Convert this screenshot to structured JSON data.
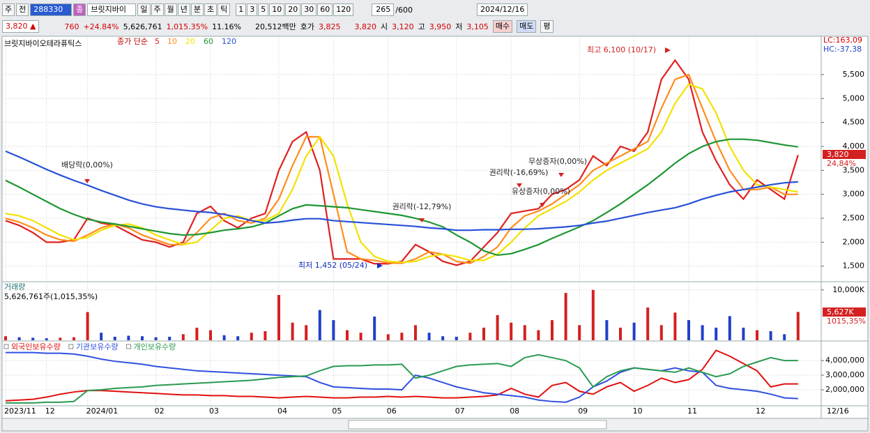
{
  "toolbar": {
    "period": "주",
    "prev": "전",
    "code": "288330",
    "badge": "종",
    "name": "브릿지바이",
    "intervals": [
      "일",
      "주",
      "월",
      "년",
      "분",
      "초",
      "틱"
    ],
    "minutes": [
      "1",
      "3",
      "5",
      "10",
      "20",
      "30",
      "60",
      "120"
    ],
    "count": "265",
    "count_max": "/600",
    "date": "2024/12/16"
  },
  "quote": {
    "price": "3,820",
    "arrow": "▲",
    "change": "760",
    "change_rate": "+24.84%",
    "volume": "5,626,761",
    "volume_rate": "1,015.35%",
    "turnover": "11.16%",
    "amount": "20,512백만",
    "bid_label": "호가",
    "ask": "3,825",
    "bid": "3,820",
    "open_label": "시",
    "open": "3,120",
    "high_label": "고",
    "high": "3,950",
    "low_label": "저",
    "low": "3,105",
    "buy": "매수",
    "sell": "매도",
    "avg": "평"
  },
  "chart_data": [
    {
      "type": "line",
      "title": "브릿지바이오테라퓨틱스",
      "subtitle": "종가 단순",
      "categories": [
        "2023/11",
        null,
        null,
        "12",
        null,
        null,
        "2024/01",
        null,
        null,
        null,
        null,
        "02",
        null,
        null,
        null,
        "03",
        null,
        null,
        null,
        null,
        "04",
        null,
        null,
        null,
        "05",
        null,
        null,
        null,
        "06",
        null,
        null,
        null,
        null,
        "07",
        null,
        null,
        null,
        "08",
        null,
        null,
        null,
        null,
        "09",
        null,
        null,
        null,
        "10",
        null,
        null,
        null,
        "11",
        null,
        null,
        null,
        null,
        "12",
        null,
        null,
        null
      ],
      "cursor_date": "12/16",
      "series": [
        {
          "name": "5",
          "color": "#e02020",
          "values": [
            2450,
            2350,
            2200,
            2000,
            2000,
            2050,
            2500,
            2400,
            2350,
            2200,
            2050,
            2000,
            1900,
            2000,
            2600,
            2750,
            2450,
            2300,
            2500,
            2600,
            3500,
            4100,
            4300,
            3500,
            1650,
            1650,
            1650,
            1550,
            1550,
            1600,
            1950,
            1800,
            1600,
            1520,
            1600,
            1900,
            2200,
            2600,
            2650,
            2700,
            3000,
            3100,
            3300,
            3800,
            3600,
            4000,
            3900,
            4300,
            5400,
            5800,
            5400,
            4300,
            3700,
            3200,
            2900,
            3300,
            3100,
            2900,
            3820
          ]
        },
        {
          "name": "10",
          "color": "#ff8c1a",
          "values": [
            2500,
            2420,
            2300,
            2150,
            2050,
            2020,
            2150,
            2300,
            2380,
            2300,
            2150,
            2050,
            1950,
            1950,
            2200,
            2500,
            2600,
            2450,
            2400,
            2500,
            2900,
            3600,
            4200,
            4200,
            3000,
            1800,
            1650,
            1620,
            1570,
            1560,
            1650,
            1800,
            1750,
            1600,
            1560,
            1700,
            1900,
            2300,
            2550,
            2650,
            2800,
            3000,
            3200,
            3500,
            3650,
            3800,
            3950,
            4100,
            4800,
            5400,
            5500,
            4800,
            4100,
            3500,
            3100,
            3100,
            3150,
            3000,
            3000
          ]
        },
        {
          "name": "20",
          "color": "#f2e200",
          "values": [
            2600,
            2550,
            2450,
            2300,
            2150,
            2050,
            2100,
            2250,
            2350,
            2380,
            2300,
            2150,
            2050,
            1950,
            2000,
            2250,
            2500,
            2550,
            2450,
            2450,
            2600,
            3100,
            3800,
            4200,
            3800,
            2800,
            2000,
            1700,
            1600,
            1580,
            1600,
            1700,
            1750,
            1700,
            1620,
            1620,
            1750,
            2000,
            2300,
            2550,
            2700,
            2850,
            3050,
            3300,
            3500,
            3650,
            3800,
            3950,
            4300,
            4900,
            5300,
            5200,
            4700,
            4000,
            3500,
            3200,
            3150,
            3100,
            3050
          ]
        },
        {
          "name": "60",
          "color": "#1e9632",
          "values": [
            3290,
            3150,
            3000,
            2850,
            2700,
            2580,
            2480,
            2420,
            2380,
            2330,
            2280,
            2230,
            2180,
            2150,
            2160,
            2200,
            2250,
            2280,
            2320,
            2400,
            2550,
            2700,
            2780,
            2760,
            2740,
            2720,
            2680,
            2640,
            2600,
            2560,
            2500,
            2420,
            2320,
            2150,
            2000,
            1820,
            1730,
            1760,
            1850,
            1950,
            2080,
            2200,
            2320,
            2450,
            2620,
            2800,
            3000,
            3200,
            3420,
            3650,
            3850,
            4000,
            4100,
            4150,
            4150,
            4130,
            4080,
            4030,
            3990
          ]
        },
        {
          "name": "120",
          "color": "#2850d8",
          "values": [
            3900,
            3780,
            3650,
            3520,
            3400,
            3290,
            3190,
            3080,
            2980,
            2880,
            2800,
            2740,
            2700,
            2670,
            2640,
            2620,
            2580,
            2520,
            2450,
            2400,
            2420,
            2460,
            2490,
            2490,
            2450,
            2430,
            2410,
            2390,
            2370,
            2350,
            2330,
            2300,
            2280,
            2250,
            2250,
            2260,
            2260,
            2270,
            2270,
            2280,
            2300,
            2320,
            2350,
            2400,
            2440,
            2500,
            2560,
            2620,
            2670,
            2720,
            2800,
            2900,
            2980,
            3050,
            3100,
            3150,
            3200,
            3240,
            3260
          ]
        }
      ],
      "ylim": [
        1190,
        6300
      ],
      "yticks": [
        {
          "value": 1500,
          "label": "1,500"
        },
        {
          "value": 2000,
          "label": "2,000"
        },
        {
          "value": 2500,
          "label": "2,500"
        },
        {
          "value": 3000,
          "label": "3,000"
        },
        {
          "value": 3500,
          "label": "3,500"
        },
        {
          "value": 4000,
          "label": "4,000"
        },
        {
          "value": 4500,
          "label": "4,500"
        },
        {
          "value": 5000,
          "label": "5,000"
        },
        {
          "value": 5500,
          "label": "5,500"
        }
      ],
      "grid": true,
      "annotations": [
        "배당락(0,00%)",
        "권리락(-12,79%)",
        "권리락(-16,69%)",
        "무상증자(0,00%)",
        "유상증자(0,00%)",
        "최고 6,100 (10/17)",
        "최저 1,452 (05/24)"
      ],
      "lc_label": "LC:163,09",
      "hc_label": "HC:-37,38",
      "last_label": "3,820",
      "rate_label": "24,84%"
    },
    {
      "type": "bar",
      "title": "거래량",
      "subtitle": "5,626,761주(1,015,35%)",
      "color_up": "#d42020",
      "color_down": "#2040c8",
      "values": [
        800,
        600,
        500,
        400,
        500,
        600,
        5600,
        1500,
        700,
        900,
        800,
        600,
        700,
        1200,
        2500,
        2000,
        1000,
        800,
        1500,
        1800,
        9000,
        3500,
        3000,
        6000,
        4000,
        2000,
        1500,
        4700,
        1200,
        1500,
        3000,
        1500,
        800,
        700,
        1500,
        2500,
        5000,
        3500,
        3000,
        2000,
        4000,
        9400,
        3000,
        10000,
        4000,
        2500,
        3500,
        6500,
        3000,
        5500,
        4000,
        3000,
        2500,
        4800,
        2500,
        2000,
        1800,
        1200,
        5627
      ],
      "ylim": [
        0,
        10800
      ],
      "yticks": [
        {
          "value": 10000,
          "label": "10,000K"
        }
      ],
      "last_label": "5,627K",
      "rate_label": "1015,35%"
    },
    {
      "type": "line",
      "series": [
        {
          "name": "외국인보유수량",
          "color": "#e01010",
          "values": [
            1250000,
            1300000,
            1350000,
            1500000,
            1700000,
            1850000,
            1950000,
            1950000,
            1900000,
            1850000,
            1800000,
            1750000,
            1700000,
            1650000,
            1650000,
            1600000,
            1600000,
            1550000,
            1550000,
            1500000,
            1450000,
            1500000,
            1550000,
            1500000,
            1450000,
            1450000,
            1500000,
            1500000,
            1550000,
            1500000,
            1550000,
            1500000,
            1450000,
            1450000,
            1500000,
            1550000,
            1650000,
            2100000,
            1700000,
            1500000,
            2300000,
            2500000,
            1900000,
            1700000,
            2200000,
            2500000,
            1900000,
            2300000,
            2800000,
            2500000,
            2700000,
            3400000,
            4700000,
            4300000,
            3800000,
            3300000,
            2200000,
            2400000,
            2400000
          ]
        },
        {
          "name": "기관보유수량",
          "color": "#3050e0",
          "values": [
            4550000,
            4550000,
            4550000,
            4500000,
            4500000,
            4450000,
            4300000,
            4100000,
            3950000,
            3850000,
            3750000,
            3600000,
            3500000,
            3400000,
            3300000,
            3250000,
            3200000,
            3150000,
            3100000,
            3050000,
            3000000,
            2950000,
            2900000,
            2500000,
            2200000,
            2150000,
            2100000,
            2050000,
            2050000,
            2000000,
            3000000,
            2800000,
            2500000,
            2200000,
            2000000,
            1800000,
            1700000,
            1600000,
            1500000,
            1300000,
            1200000,
            1150000,
            1500000,
            2200000,
            2600000,
            3200000,
            3500000,
            3400000,
            3300000,
            3500000,
            3300000,
            3200000,
            2300000,
            2100000,
            2000000,
            1900000,
            1700000,
            1450000,
            1400000
          ]
        },
        {
          "name": "개인보유수량",
          "color": "#2a9a50",
          "values": [
            1100000,
            1100000,
            1100000,
            1150000,
            1150000,
            1200000,
            1950000,
            2000000,
            2100000,
            2150000,
            2200000,
            2300000,
            2350000,
            2400000,
            2450000,
            2500000,
            2550000,
            2600000,
            2650000,
            2750000,
            2850000,
            2900000,
            2950000,
            3300000,
            3600000,
            3650000,
            3650000,
            3700000,
            3700000,
            3750000,
            2800000,
            3000000,
            3300000,
            3600000,
            3700000,
            3750000,
            3800000,
            3600000,
            4200000,
            4400000,
            4200000,
            4000000,
            3500000,
            2200000,
            2900000,
            3300000,
            3500000,
            3400000,
            3300000,
            3200000,
            3500000,
            3200000,
            2900000,
            3100000,
            3600000,
            3900000,
            4200000,
            4000000,
            4000000
          ]
        }
      ],
      "ylim": [
        1000000,
        5200000
      ],
      "yticks": [
        {
          "value": 2000000,
          "label": "2,000,000"
        },
        {
          "value": 3000000,
          "label": "3,000,000"
        },
        {
          "value": 4000000,
          "label": "4,000,000"
        }
      ]
    }
  ]
}
